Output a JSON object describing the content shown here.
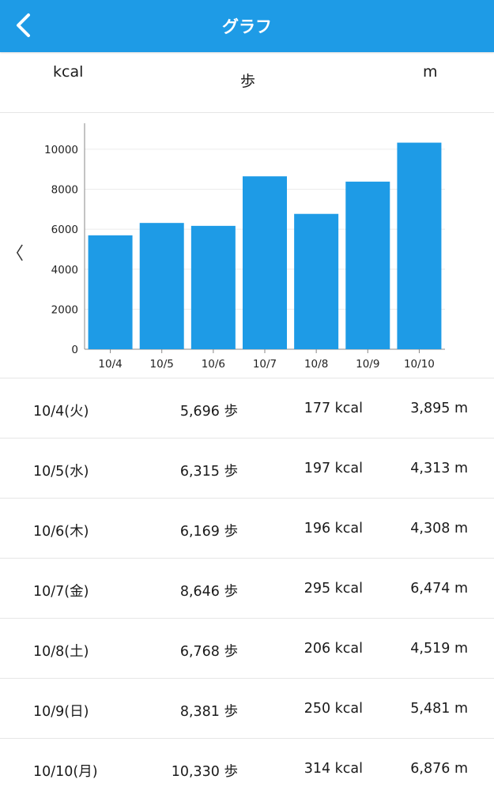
{
  "header": {
    "title": "グラフ",
    "back_icon": "chevron-left-icon"
  },
  "summary": {
    "kcal_unit": "kcal",
    "steps_unit": "歩",
    "distance_unit": "m"
  },
  "chart_nav": {
    "prev_label": "〈"
  },
  "chart_data": {
    "type": "bar",
    "categories": [
      "10/4",
      "10/5",
      "10/6",
      "10/7",
      "10/8",
      "10/9",
      "10/10"
    ],
    "values": [
      5696,
      6315,
      6169,
      8646,
      6768,
      8381,
      10330
    ],
    "yticks": [
      0,
      2000,
      4000,
      6000,
      8000,
      10000
    ],
    "ylim": [
      0,
      11300
    ],
    "grid": true,
    "bar_color": "#1e9be6",
    "title": "",
    "xlabel": "",
    "ylabel": ""
  },
  "daily": [
    {
      "date": "10/4(火)",
      "steps": "5,696 歩",
      "kcal": "177 kcal",
      "distance": "3,895 m"
    },
    {
      "date": "10/5(水)",
      "steps": "6,315 歩",
      "kcal": "197 kcal",
      "distance": "4,313 m"
    },
    {
      "date": "10/6(木)",
      "steps": "6,169 歩",
      "kcal": "196 kcal",
      "distance": "4,308 m"
    },
    {
      "date": "10/7(金)",
      "steps": "8,646 歩",
      "kcal": "295 kcal",
      "distance": "6,474 m"
    },
    {
      "date": "10/8(土)",
      "steps": "6,768 歩",
      "kcal": "206 kcal",
      "distance": "4,519 m"
    },
    {
      "date": "10/9(日)",
      "steps": "8,381 歩",
      "kcal": "250 kcal",
      "distance": "5,481 m"
    },
    {
      "date": "10/10(月)",
      "steps": "10,330 歩",
      "kcal": "314 kcal",
      "distance": "6,876 m"
    }
  ],
  "colors": {
    "accent": "#1e9be6"
  }
}
